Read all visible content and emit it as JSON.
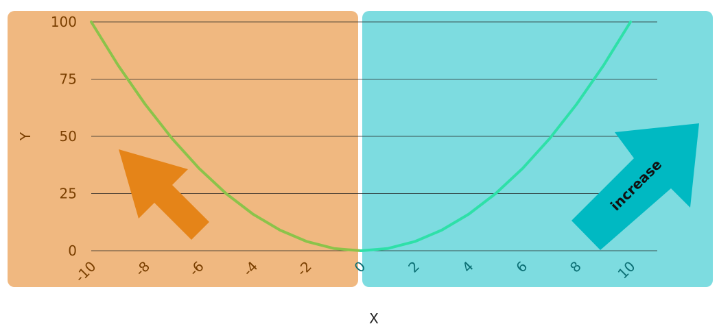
{
  "chart_data": {
    "type": "line",
    "title": "",
    "xlabel": "X",
    "ylabel": "Y",
    "xlim": [
      -10,
      10
    ],
    "ylim": [
      0,
      100
    ],
    "x_ticks": [
      "-10",
      "-8",
      "-6",
      "-4",
      "-2",
      "0",
      "2",
      "4",
      "6",
      "8",
      "10"
    ],
    "y_ticks": [
      "0",
      "25",
      "50",
      "75",
      "100"
    ],
    "grid": "horizontal",
    "series": [
      {
        "x": [
          -10,
          -9,
          -8,
          -7,
          -6,
          -5,
          -4,
          -3,
          -2,
          -1,
          0,
          1,
          2,
          3,
          4,
          5,
          6,
          7,
          8,
          9,
          10
        ],
        "y": [
          100,
          81,
          64,
          49,
          36,
          25,
          16,
          9,
          4,
          1,
          0,
          1,
          4,
          9,
          16,
          25,
          36,
          49,
          64,
          81,
          100
        ]
      }
    ],
    "regions": [
      {
        "side": "negative-x",
        "color": "#f0b880"
      },
      {
        "side": "positive-x",
        "color": "#7ddce0"
      }
    ],
    "annotations": [
      {
        "text": "",
        "arrow": "decrease",
        "color": "#e58418"
      },
      {
        "text": "increase",
        "arrow": "increase",
        "color": "#00b9c2"
      }
    ],
    "colors": {
      "left_curve": "#8bc34a",
      "right_curve": "#2ee0a8",
      "left_text": "#7a3f00",
      "right_text": "#0b6f74",
      "grid": "#222222"
    }
  }
}
